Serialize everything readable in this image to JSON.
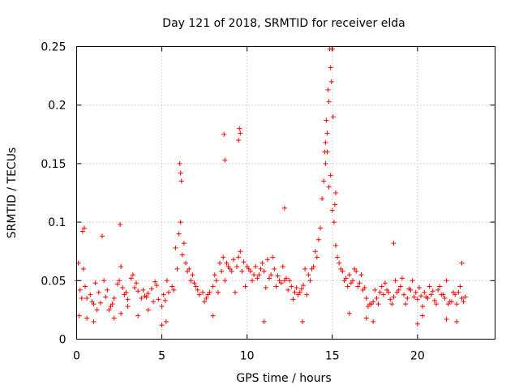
{
  "chart_data": {
    "type": "scatter",
    "title": "Day 121 of 2018, SRMTID for receiver elda",
    "xlabel": "GPS time / hours",
    "ylabel": "SRMTID / TECUs",
    "xlim": [
      0,
      24.55
    ],
    "ylim": [
      0,
      0.25
    ],
    "xticks": [
      0,
      5,
      10,
      15,
      20
    ],
    "xtick_labels": [
      "0",
      "5",
      "10",
      "15",
      "20"
    ],
    "yticks": [
      0,
      0.05,
      0.1,
      0.15,
      0.2,
      0.25
    ],
    "ytick_labels": [
      "0",
      "0.05",
      "0.1",
      "0.15",
      "0.2",
      "0.25"
    ],
    "grid": true,
    "marker": "plus",
    "series": [
      {
        "name": "SRMTID",
        "color": "#ff0000",
        "x": [
          0.0,
          0.2,
          0.4,
          0.6,
          0.8,
          1.0,
          1.2,
          1.4,
          1.6,
          1.8,
          2.0,
          2.2,
          2.4,
          2.6,
          2.8,
          3.0,
          3.2,
          3.4,
          3.6,
          3.8,
          4.0,
          4.2,
          4.4,
          4.6,
          4.8,
          5.0,
          5.2,
          5.4,
          5.6,
          5.8,
          6.0,
          6.2,
          6.4,
          6.6,
          6.8,
          7.0,
          7.2,
          7.4,
          7.6,
          7.8,
          8.0,
          8.2,
          8.4,
          8.6,
          8.8,
          9.0,
          9.2,
          9.4,
          9.6,
          9.8,
          10.0,
          10.2,
          10.4,
          10.6,
          10.8,
          11.0,
          11.2,
          11.4,
          11.6,
          11.8,
          12.0,
          12.2,
          12.4,
          12.6,
          12.8,
          13.0,
          13.2,
          13.4,
          13.6,
          13.8,
          14.0,
          14.2,
          14.4,
          14.6,
          14.8,
          15.0,
          15.2,
          15.4,
          15.6,
          15.8,
          16.0,
          16.2,
          16.4,
          16.6,
          16.8,
          17.0,
          17.2,
          17.4,
          17.6,
          17.8,
          18.0,
          18.2,
          18.4,
          18.6,
          18.8,
          19.0,
          19.2,
          19.4,
          19.6,
          19.8,
          20.0,
          20.2,
          20.4,
          20.6,
          20.8,
          21.0,
          21.2,
          21.4,
          21.6,
          21.8,
          22.0,
          22.2,
          22.4,
          22.6,
          22.8,
          0.1,
          0.3,
          0.5,
          0.9,
          1.1,
          1.3,
          1.7,
          1.9,
          2.1,
          2.5,
          2.7,
          2.9,
          3.3,
          3.5,
          3.9,
          4.1,
          4.5,
          4.7,
          5.1,
          5.3,
          5.7,
          5.9,
          6.1,
          6.3,
          6.5,
          6.7,
          6.9,
          7.1,
          7.5,
          7.7,
          8.1,
          8.3,
          8.5,
          8.7,
          8.9,
          9.1,
          9.3,
          9.5,
          9.7,
          9.9,
          10.1,
          10.3,
          10.5,
          10.7,
          10.9,
          11.1,
          11.3,
          11.5,
          11.7,
          11.9,
          12.1,
          12.3,
          12.5,
          12.7,
          12.9,
          13.1,
          13.3,
          13.5,
          13.7,
          13.9,
          14.1,
          14.3,
          14.5,
          14.7,
          14.9,
          15.1,
          15.3,
          15.5,
          15.7,
          15.9,
          16.1,
          16.3,
          16.5,
          16.7,
          16.9,
          17.1,
          17.3,
          17.5,
          17.7,
          17.9,
          18.1,
          18.3,
          18.5,
          18.7,
          18.9,
          19.1,
          19.3,
          19.5,
          19.7,
          19.9,
          20.1,
          20.3,
          20.5,
          20.7,
          20.9,
          21.1,
          21.3,
          21.5,
          21.7,
          21.9,
          22.1,
          22.3,
          22.5,
          22.7,
          0.35,
          0.45,
          1.5,
          2.55,
          6.05,
          6.1,
          6.15,
          8.65,
          8.7,
          9.55,
          9.6,
          9.5,
          12.2,
          14.65,
          14.75,
          14.8,
          14.85,
          14.9,
          14.95,
          15.0,
          14.7,
          14.6,
          14.55,
          15.05,
          15.15,
          15.2,
          0.15,
          0.6,
          1.0,
          2.2,
          2.6,
          3.0,
          3.6,
          4.2,
          5.0,
          5.25,
          8.0,
          11.0,
          13.25,
          16.0,
          17.0,
          17.4,
          18.6,
          20.0,
          20.3,
          21.7,
          22.3,
          22.6
        ],
        "y": [
          0.05,
          0.042,
          0.06,
          0.035,
          0.038,
          0.03,
          0.025,
          0.031,
          0.05,
          0.042,
          0.028,
          0.035,
          0.047,
          0.062,
          0.038,
          0.034,
          0.052,
          0.044,
          0.041,
          0.035,
          0.037,
          0.039,
          0.043,
          0.049,
          0.034,
          0.028,
          0.033,
          0.04,
          0.045,
          0.078,
          0.09,
          0.072,
          0.065,
          0.06,
          0.055,
          0.045,
          0.038,
          0.04,
          0.035,
          0.04,
          0.045,
          0.05,
          0.065,
          0.07,
          0.065,
          0.06,
          0.068,
          0.062,
          0.075,
          0.066,
          0.062,
          0.058,
          0.055,
          0.052,
          0.06,
          0.058,
          0.068,
          0.055,
          0.06,
          0.054,
          0.048,
          0.05,
          0.042,
          0.045,
          0.04,
          0.038,
          0.043,
          0.06,
          0.055,
          0.06,
          0.075,
          0.085,
          0.12,
          0.15,
          0.13,
          0.11,
          0.08,
          0.065,
          0.058,
          0.052,
          0.055,
          0.05,
          0.058,
          0.048,
          0.042,
          0.035,
          0.03,
          0.032,
          0.035,
          0.04,
          0.038,
          0.042,
          0.034,
          0.036,
          0.04,
          0.045,
          0.038,
          0.035,
          0.042,
          0.036,
          0.034,
          0.037,
          0.04,
          0.035,
          0.038,
          0.033,
          0.042,
          0.038,
          0.035,
          0.03,
          0.032,
          0.038,
          0.04,
          0.035,
          0.036,
          0.065,
          0.035,
          0.045,
          0.032,
          0.048,
          0.04,
          0.036,
          0.025,
          0.03,
          0.05,
          0.044,
          0.04,
          0.055,
          0.048,
          0.042,
          0.036,
          0.032,
          0.046,
          0.038,
          0.05,
          0.042,
          0.06,
          0.1,
          0.082,
          0.058,
          0.05,
          0.048,
          0.042,
          0.032,
          0.038,
          0.055,
          0.04,
          0.058,
          0.05,
          0.062,
          0.058,
          0.04,
          0.07,
          0.058,
          0.045,
          0.06,
          0.05,
          0.062,
          0.055,
          0.065,
          0.044,
          0.052,
          0.07,
          0.045,
          0.05,
          0.062,
          0.052,
          0.05,
          0.034,
          0.044,
          0.04,
          0.046,
          0.038,
          0.05,
          0.062,
          0.07,
          0.095,
          0.135,
          0.16,
          0.14,
          0.1,
          0.07,
          0.06,
          0.05,
          0.045,
          0.048,
          0.06,
          0.045,
          0.055,
          0.044,
          0.028,
          0.03,
          0.042,
          0.03,
          0.045,
          0.048,
          0.04,
          0.03,
          0.05,
          0.042,
          0.052,
          0.03,
          0.043,
          0.05,
          0.04,
          0.044,
          0.028,
          0.036,
          0.045,
          0.041,
          0.03,
          0.045,
          0.038,
          0.05,
          0.032,
          0.04,
          0.03,
          0.045,
          0.032,
          0.092,
          0.095,
          0.088,
          0.098,
          0.15,
          0.142,
          0.135,
          0.175,
          0.153,
          0.18,
          0.176,
          0.17,
          0.112,
          0.187,
          0.213,
          0.203,
          0.248,
          0.232,
          0.22,
          0.248,
          0.176,
          0.168,
          0.16,
          0.19,
          0.115,
          0.125,
          0.02,
          0.018,
          0.015,
          0.018,
          0.022,
          0.028,
          0.02,
          0.025,
          0.012,
          0.015,
          0.02,
          0.015,
          0.015,
          0.022,
          0.018,
          0.015,
          0.082,
          0.013,
          0.02,
          0.017,
          0.015,
          0.065
        ]
      }
    ]
  }
}
